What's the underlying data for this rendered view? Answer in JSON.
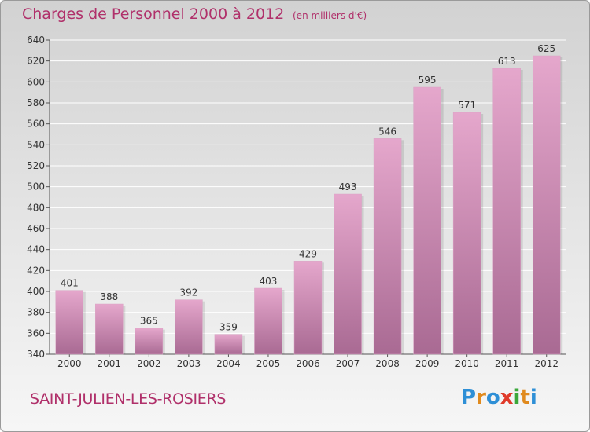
{
  "header": {
    "title": "Charges de Personnel 2000 à 2012",
    "subtitle": "(en milliers d'€)"
  },
  "footer": {
    "commune": "SAINT-JULIEN-LES-ROSIERS",
    "logo": "Proxiti"
  },
  "colors": {
    "accent": "#b0306a",
    "bar_top": "#e5a7cc",
    "bar_bottom": "#a96a93",
    "grid": "#ffffff",
    "logo_letters": [
      "#2e8fd6",
      "#e08a1e",
      "#2e8fd6",
      "#e03a2a",
      "#3aa83a",
      "#e08a1e",
      "#2e8fd6"
    ]
  },
  "chart_data": {
    "type": "bar",
    "categories": [
      "2000",
      "2001",
      "2002",
      "2003",
      "2004",
      "2005",
      "2006",
      "2007",
      "2008",
      "2009",
      "2010",
      "2011",
      "2012"
    ],
    "values": [
      401,
      388,
      365,
      392,
      359,
      403,
      429,
      493,
      546,
      595,
      571,
      613,
      625
    ],
    "title": "Charges de Personnel 2000 à 2012",
    "xlabel": "",
    "ylabel": "",
    "ylim": [
      340,
      640
    ],
    "yticks": [
      340,
      360,
      380,
      400,
      420,
      440,
      460,
      480,
      500,
      520,
      540,
      560,
      580,
      600,
      620,
      640
    ],
    "grid": true,
    "data_labels": true
  }
}
